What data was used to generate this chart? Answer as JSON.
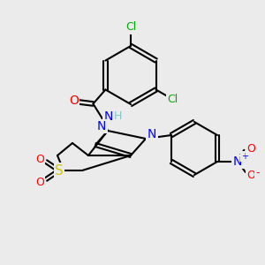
{
  "bg_color": "#ebebeb",
  "atom_colors": {
    "C": "#000000",
    "H": "#7ec8c8",
    "N": "#0000ff",
    "O": "#ff0000",
    "S": "#cccc00",
    "Cl": "#00aa00"
  },
  "bond_color": "#000000",
  "figsize": [
    3.0,
    3.0
  ],
  "dpi": 100
}
